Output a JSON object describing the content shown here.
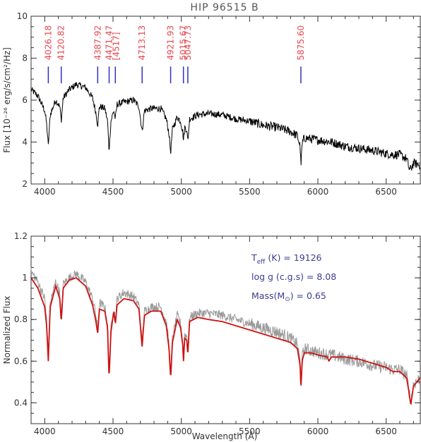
{
  "chart_data": [
    {
      "type": "line",
      "title": "HIP 96515 B",
      "ylabel": "Flux [10⁻²⁶ erg/s/cm²/Hz]",
      "xlim": [
        3900,
        6750
      ],
      "ylim": [
        2,
        10
      ],
      "xticks": [
        4000,
        4500,
        5000,
        5500,
        6000,
        6500
      ],
      "yticks": [
        2,
        4,
        6,
        8,
        10
      ],
      "line_marker_color": "#2e2ecc",
      "line_label_color": "#e8474e",
      "line_labels": [
        {
          "x": 4026.18,
          "label": "4026.18"
        },
        {
          "x": 4120.82,
          "label": "4120.82"
        },
        {
          "x": 4387.92,
          "label": "4387.92"
        },
        {
          "x": 4471.47,
          "label": "4471.47"
        },
        {
          "x": 4517,
          "label": "[4517]"
        },
        {
          "x": 4713.13,
          "label": "4713.13"
        },
        {
          "x": 4921.93,
          "label": "4921.93"
        },
        {
          "x": 5015.67,
          "label": "5015.67"
        },
        {
          "x": 5047.73,
          "label": "5047.73"
        },
        {
          "x": 5875.6,
          "label": "5875.60"
        }
      ],
      "series": [
        {
          "color": "#000000",
          "x": [
            3900,
            3950,
            4000,
            4015,
            4026,
            4040,
            4080,
            4110,
            4121,
            4135,
            4180,
            4230,
            4300,
            4350,
            4375,
            4388,
            4400,
            4440,
            4460,
            4471,
            4485,
            4505,
            4517,
            4530,
            4580,
            4650,
            4690,
            4713,
            4730,
            4780,
            4850,
            4890,
            4910,
            4922,
            4935,
            4970,
            4995,
            5010,
            5016,
            5025,
            5040,
            5048,
            5060,
            5120,
            5200,
            5300,
            5400,
            5500,
            5600,
            5700,
            5800,
            5850,
            5870,
            5876,
            5885,
            5900,
            5950,
            6000,
            6100,
            6200,
            6300,
            6400,
            6500,
            6550,
            6600,
            6650,
            6670,
            6680,
            6700,
            6750
          ],
          "y": [
            6.5,
            6.2,
            5.5,
            4.8,
            3.8,
            5.3,
            6.0,
            5.7,
            5.0,
            6.1,
            6.5,
            6.75,
            6.6,
            6.1,
            5.4,
            4.8,
            5.7,
            5.6,
            5.0,
            3.6,
            5.0,
            5.5,
            5.1,
            5.8,
            5.9,
            6.0,
            5.7,
            4.5,
            5.5,
            5.6,
            5.6,
            5.1,
            4.4,
            3.5,
            4.6,
            5.2,
            5.0,
            4.5,
            4.1,
            4.7,
            4.6,
            4.0,
            5.1,
            5.3,
            5.35,
            5.3,
            5.1,
            5.0,
            4.8,
            4.7,
            4.5,
            4.3,
            3.8,
            2.9,
            3.9,
            4.2,
            4.15,
            4.1,
            4.0,
            3.8,
            3.7,
            3.6,
            3.45,
            3.4,
            3.4,
            3.2,
            2.7,
            2.7,
            3.0,
            2.9
          ]
        }
      ]
    },
    {
      "type": "line",
      "xlabel": "Wavelength (Å)",
      "ylabel": "Normalized Flux",
      "xlim": [
        3900,
        6750
      ],
      "ylim": [
        0.3,
        1.2
      ],
      "xticks": [
        4000,
        4500,
        5000,
        5500,
        6000,
        6500
      ],
      "yticks": [
        0.4,
        0.6,
        0.8,
        1.0,
        1.2
      ],
      "annotations": {
        "teff_symbol": "T",
        "teff_subscript": "eff",
        "teff_rest": " (K) = 19126",
        "logg": "log g (c.g.s) = 8.08",
        "mass_prefix": "Mass(M",
        "mass_symbol": "⊙",
        "mass_rest": ") = 0.65"
      },
      "series": [
        {
          "color": "#999999",
          "x": [
            3900,
            3950,
            4000,
            4015,
            4026,
            4040,
            4080,
            4110,
            4121,
            4135,
            4180,
            4230,
            4300,
            4350,
            4375,
            4388,
            4400,
            4440,
            4460,
            4471,
            4485,
            4505,
            4517,
            4530,
            4580,
            4650,
            4690,
            4713,
            4730,
            4780,
            4850,
            4890,
            4910,
            4922,
            4935,
            4970,
            4995,
            5010,
            5016,
            5025,
            5040,
            5048,
            5060,
            5120,
            5200,
            5300,
            5400,
            5500,
            5600,
            5700,
            5800,
            5850,
            5870,
            5876,
            5885,
            5900,
            5950,
            6000,
            6100,
            6200,
            6300,
            6400,
            6500,
            6550,
            6600,
            6650,
            6670,
            6680,
            6700,
            6750
          ],
          "y": [
            1.03,
            0.98,
            0.9,
            0.78,
            0.62,
            0.88,
            0.98,
            0.93,
            0.8,
            0.97,
            1.0,
            1.02,
            0.98,
            0.9,
            0.82,
            0.75,
            0.88,
            0.86,
            0.78,
            0.53,
            0.76,
            0.86,
            0.8,
            0.9,
            0.93,
            0.91,
            0.87,
            0.69,
            0.84,
            0.86,
            0.86,
            0.79,
            0.68,
            0.53,
            0.71,
            0.82,
            0.78,
            0.7,
            0.63,
            0.73,
            0.72,
            0.64,
            0.81,
            0.83,
            0.83,
            0.82,
            0.8,
            0.78,
            0.76,
            0.74,
            0.71,
            0.68,
            0.6,
            0.48,
            0.62,
            0.66,
            0.65,
            0.64,
            0.63,
            0.61,
            0.6,
            0.58,
            0.57,
            0.56,
            0.56,
            0.53,
            0.45,
            0.4,
            0.49,
            0.52
          ]
        },
        {
          "color": "#cc1111",
          "x": [
            3900,
            3950,
            4000,
            4015,
            4026,
            4040,
            4080,
            4110,
            4121,
            4135,
            4180,
            4230,
            4300,
            4350,
            4375,
            4388,
            4400,
            4440,
            4460,
            4471,
            4485,
            4505,
            4517,
            4530,
            4580,
            4650,
            4690,
            4713,
            4730,
            4780,
            4850,
            4890,
            4910,
            4922,
            4935,
            4970,
            4995,
            5010,
            5016,
            5025,
            5040,
            5048,
            5060,
            5120,
            5200,
            5300,
            5400,
            5500,
            5600,
            5700,
            5800,
            5850,
            5870,
            5876,
            5885,
            5900,
            5950,
            6000,
            6070,
            6080,
            6100,
            6200,
            6300,
            6400,
            6500,
            6550,
            6600,
            6650,
            6670,
            6680,
            6700,
            6750
          ],
          "y": [
            1.0,
            0.95,
            0.86,
            0.76,
            0.6,
            0.86,
            0.96,
            0.9,
            0.79,
            0.95,
            0.99,
            1.0,
            0.96,
            0.87,
            0.79,
            0.73,
            0.85,
            0.84,
            0.76,
            0.52,
            0.74,
            0.84,
            0.78,
            0.87,
            0.9,
            0.89,
            0.85,
            0.67,
            0.82,
            0.84,
            0.84,
            0.77,
            0.66,
            0.52,
            0.69,
            0.8,
            0.76,
            0.68,
            0.6,
            0.71,
            0.7,
            0.63,
            0.79,
            0.81,
            0.8,
            0.79,
            0.77,
            0.75,
            0.73,
            0.71,
            0.69,
            0.66,
            0.58,
            0.47,
            0.6,
            0.64,
            0.64,
            0.63,
            0.62,
            0.6,
            0.62,
            0.62,
            0.61,
            0.59,
            0.57,
            0.55,
            0.55,
            0.52,
            0.44,
            0.39,
            0.48,
            0.52
          ]
        }
      ]
    }
  ]
}
